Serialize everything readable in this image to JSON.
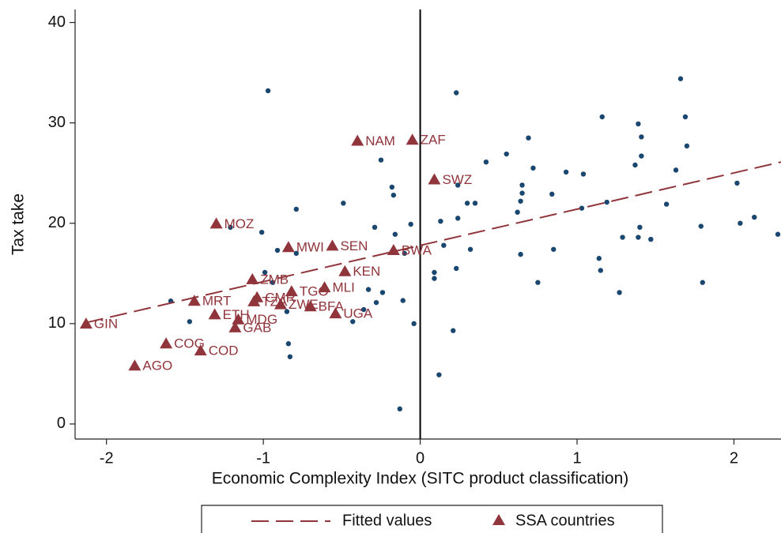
{
  "chart_data": {
    "type": "scatter",
    "xlabel": "Economic Complexity Index (SITC product classification)",
    "ylabel": "Tax take",
    "xlim": [
      -2.2,
      2.3
    ],
    "ylim": [
      -1.5,
      41.3
    ],
    "xticks": [
      -2,
      -1,
      0,
      1,
      2
    ],
    "yticks": [
      0,
      10,
      20,
      30,
      40
    ],
    "xline": 0,
    "series": [
      {
        "color": "#1a476f",
        "marker": "circle",
        "x": [
          -0.97,
          -0.25,
          -0.18,
          -0.17,
          -0.49,
          -0.79,
          -1.21,
          -1.01,
          -0.91,
          -0.79,
          -0.16,
          -0.06,
          -0.29,
          -0.99,
          -0.94,
          -0.33,
          -0.24,
          -0.28,
          -0.11,
          -0.36,
          -0.43,
          -0.85,
          -0.84,
          -0.83,
          -0.04,
          -1.59,
          -1.47,
          -0.13,
          0.12,
          0.21,
          0.09,
          0.09,
          -0.1,
          0.15,
          0.13,
          0.23,
          0.24,
          0.24,
          0.23,
          0.3,
          0.35,
          0.32,
          0.42,
          0.55,
          0.69,
          0.65,
          0.65,
          0.64,
          0.62,
          0.72,
          0.64,
          0.75,
          0.84,
          0.85,
          0.93,
          1.04,
          1.03,
          1.16,
          1.19,
          1.14,
          1.15,
          1.27,
          1.29,
          1.37,
          1.39,
          1.41,
          1.41,
          1.4,
          1.39,
          1.47,
          1.57,
          1.63,
          1.66,
          1.69,
          1.7,
          1.79,
          1.8,
          2.02,
          2.04,
          2.13,
          2.28
        ],
        "values": [
          33.2,
          26.3,
          23.6,
          22.8,
          22.0,
          21.4,
          19.6,
          19.1,
          17.3,
          17.0,
          18.9,
          19.9,
          19.6,
          15.1,
          14.1,
          13.4,
          13.1,
          12.1,
          12.3,
          11.4,
          10.2,
          11.2,
          8.0,
          6.7,
          10.0,
          12.25,
          10.2,
          1.5,
          4.9,
          9.3,
          15.1,
          14.5,
          17.0,
          17.8,
          20.2,
          33.0,
          23.8,
          20.5,
          15.5,
          22.0,
          22.0,
          17.4,
          26.1,
          26.9,
          28.5,
          23.8,
          23.0,
          22.2,
          21.1,
          25.5,
          16.9,
          14.1,
          22.9,
          17.4,
          25.1,
          24.9,
          21.5,
          30.6,
          22.1,
          16.5,
          15.3,
          13.1,
          18.6,
          25.8,
          29.9,
          28.6,
          26.7,
          19.6,
          18.6,
          18.4,
          21.9,
          25.3,
          34.4,
          30.6,
          27.7,
          19.7,
          14.1,
          24.0,
          20.0,
          20.6,
          18.9
        ]
      },
      {
        "name": "SSA countries",
        "color": "#90353b",
        "marker": "triangle",
        "point_labels": [
          "GIN",
          "AGO",
          "COG",
          "COD",
          "MRT",
          "ETH",
          "MOZ",
          "GAB",
          "MDG",
          "ZMB",
          "CMR",
          "TZA",
          "ZWE",
          "TGO",
          "MWI",
          "SEN",
          "MLI",
          "BFA",
          "UGA",
          "KEN",
          "BWA",
          "NAM",
          "ZAF",
          "SWZ"
        ],
        "x": [
          -2.13,
          -1.82,
          -1.62,
          -1.4,
          -1.44,
          -1.31,
          -1.3,
          -1.18,
          -1.16,
          -1.07,
          -1.04,
          -1.06,
          -0.89,
          -0.82,
          -0.84,
          -0.56,
          -0.61,
          -0.7,
          -0.54,
          -0.48,
          -0.17,
          -0.4,
          -0.05,
          0.09
        ],
        "values": [
          9.98,
          5.8,
          8.0,
          7.3,
          12.25,
          10.9,
          19.95,
          9.6,
          10.4,
          14.4,
          12.6,
          12.2,
          11.9,
          13.2,
          17.6,
          17.75,
          13.6,
          11.7,
          11.0,
          15.2,
          17.3,
          28.2,
          28.3,
          24.35
        ]
      },
      {
        "name": "Fitted values",
        "color": "#90353b",
        "marker": "dashed-line",
        "x": [
          -2.13,
          2.3
        ],
        "values": [
          10.1,
          26.1
        ]
      }
    ]
  }
}
